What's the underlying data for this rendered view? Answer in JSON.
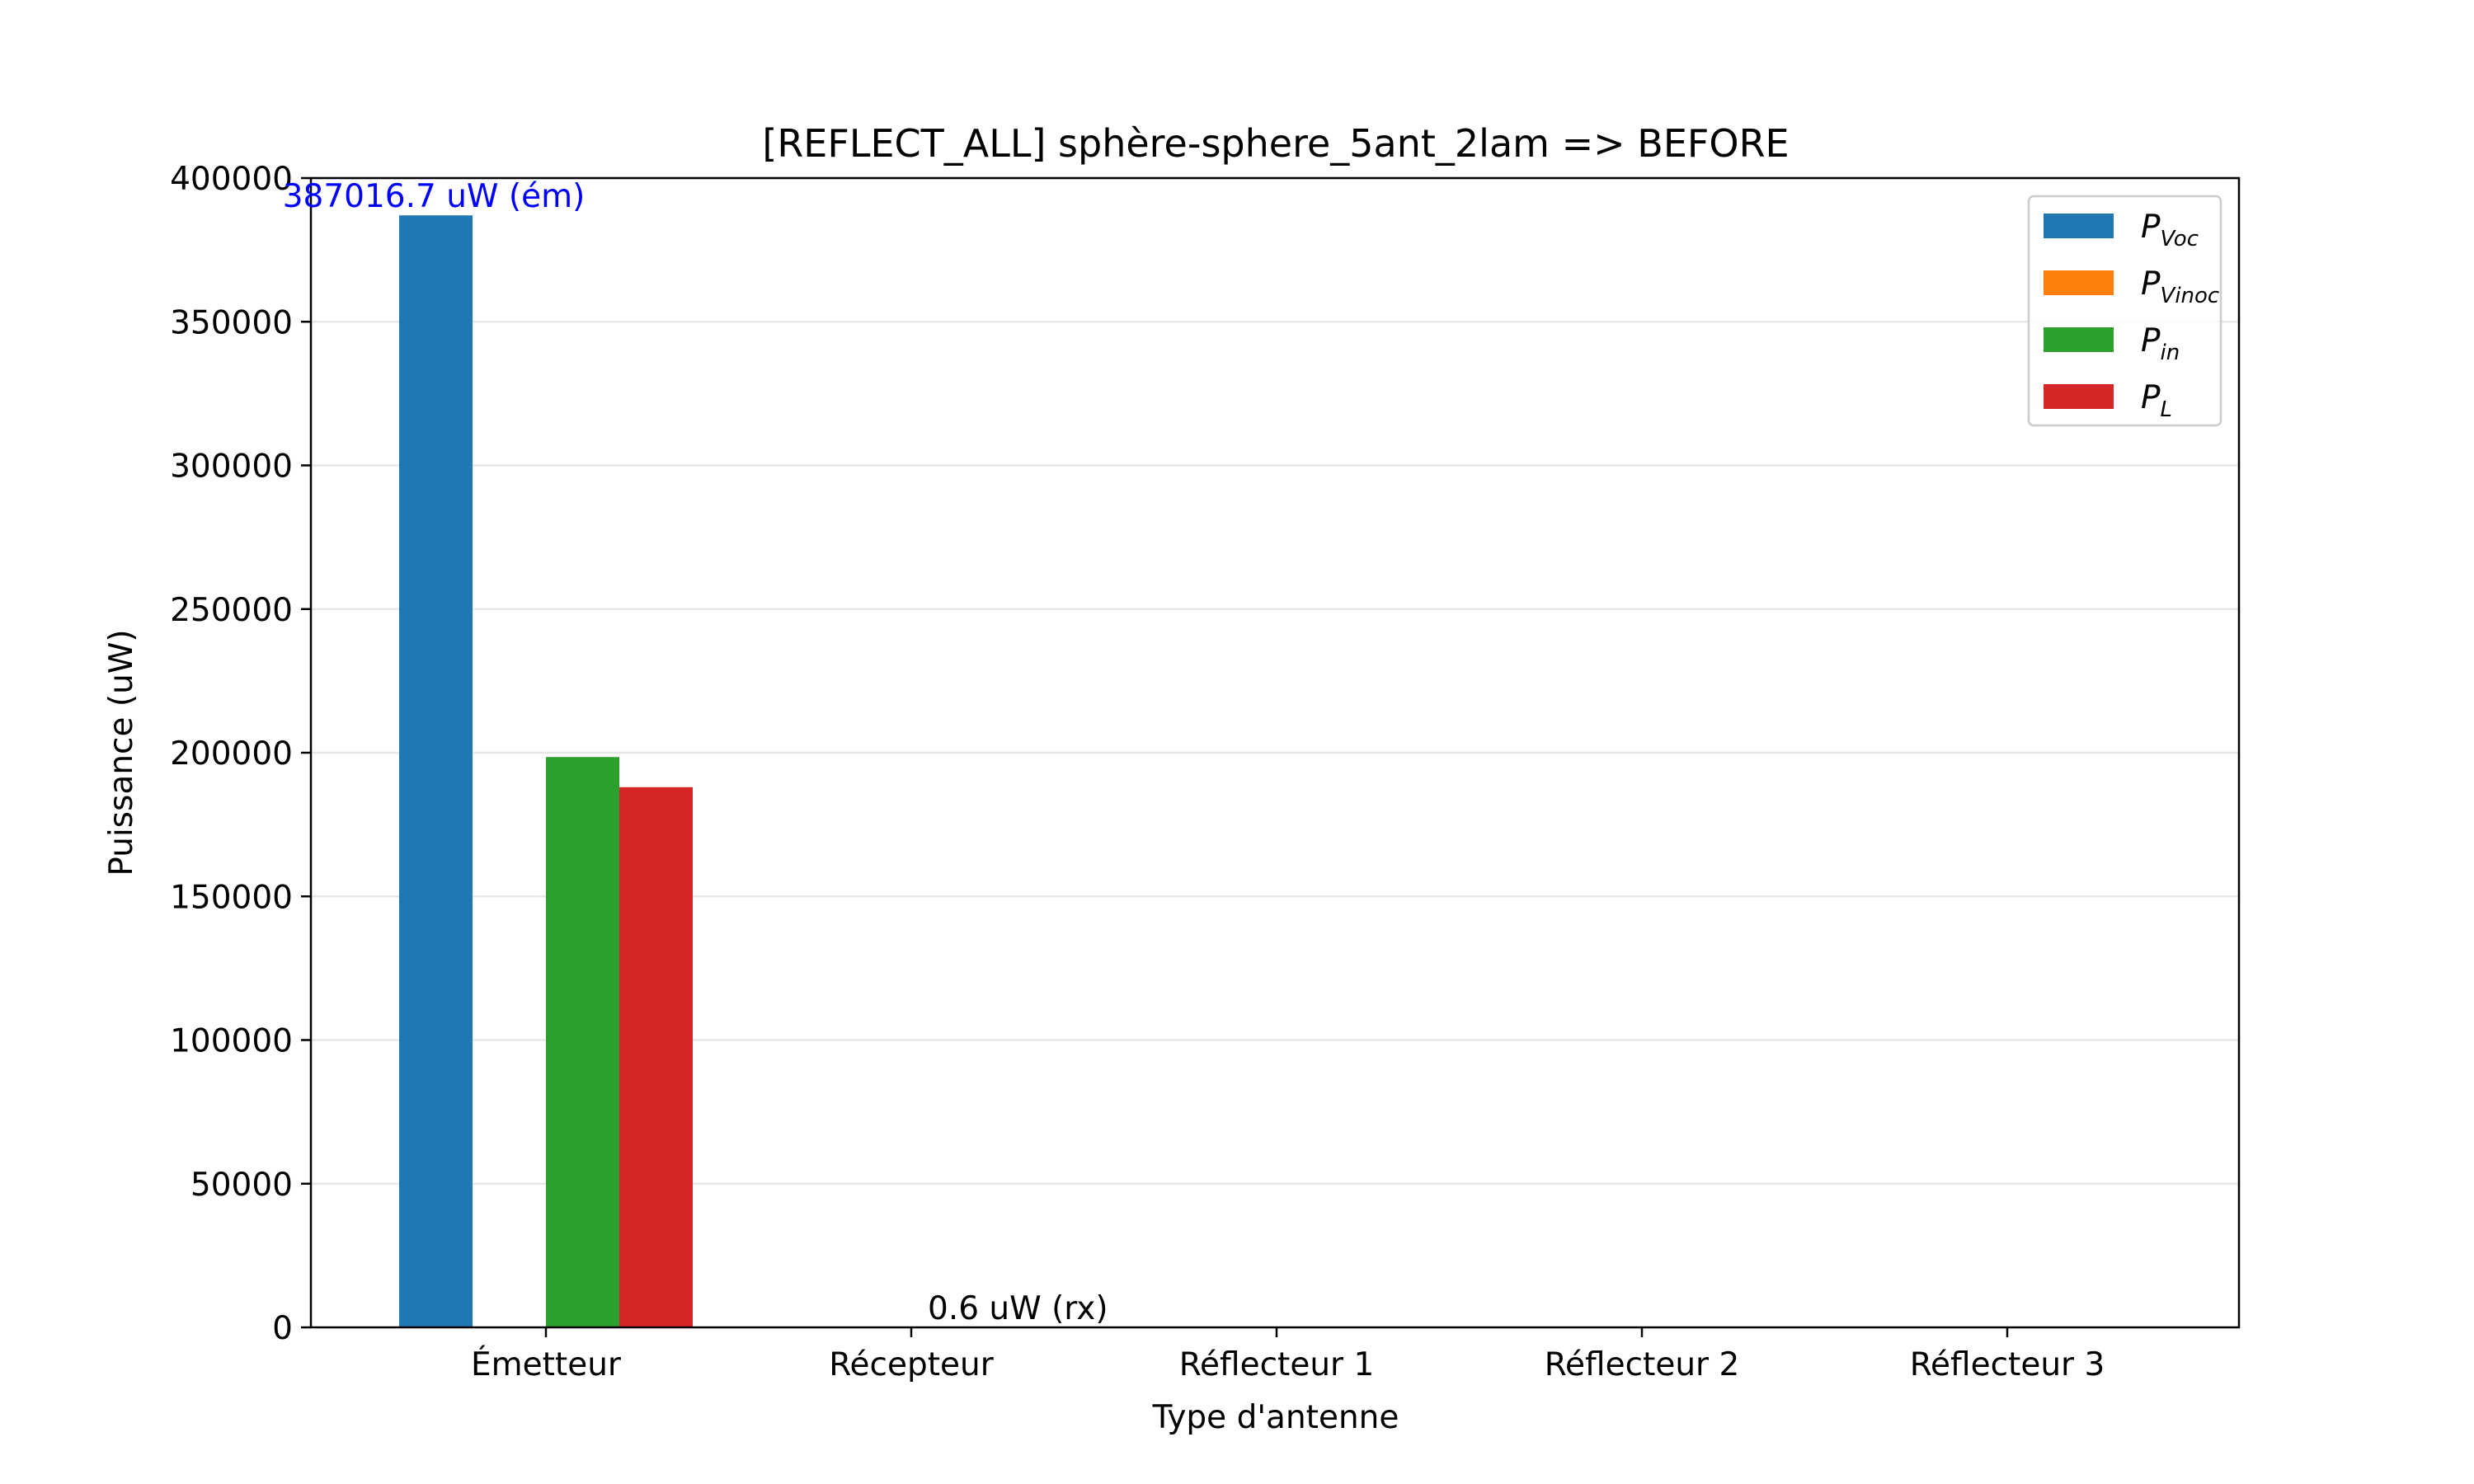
{
  "chart_data": {
    "type": "bar",
    "title": "[REFLECT_ALL] sphère-sphere_5ant_2lam => BEFORE",
    "xlabel": "Type d'antenne",
    "ylabel": "Puissance (uW)",
    "categories": [
      "Émetteur",
      "Récepteur",
      "Réflecteur 1",
      "Réflecteur 2",
      "Réflecteur 3"
    ],
    "ylim": [
      0,
      400000
    ],
    "yticks": [
      0,
      50000,
      100000,
      150000,
      200000,
      250000,
      300000,
      350000,
      400000
    ],
    "yticks_labels": [
      "0",
      "50000",
      "100000",
      "150000",
      "200000",
      "250000",
      "300000",
      "350000",
      "400000"
    ],
    "grid": "horizontal",
    "legend_position": "top-right",
    "series": [
      {
        "name": "P",
        "sub": "Voc",
        "color": "#1f77b4",
        "values": [
          387016.7,
          0.6,
          0,
          0,
          0
        ]
      },
      {
        "name": "P",
        "sub": "Vinoc",
        "color": "#ff7f0e",
        "values": [
          0,
          0,
          0,
          0,
          0
        ]
      },
      {
        "name": "P",
        "sub": "in",
        "color": "#2ca02c",
        "values": [
          198500,
          0,
          0,
          0,
          0
        ]
      },
      {
        "name": "P",
        "sub": "L",
        "color": "#d62728",
        "values": [
          188000,
          0,
          0,
          0,
          0
        ]
      }
    ],
    "annotations": [
      {
        "text": "387016.7 uW (ém)",
        "category": 0,
        "value": 387016.7,
        "color": "#0000ff"
      },
      {
        "text": "0.6 uW (rx)",
        "category": 1,
        "value": 0.6,
        "color": "#000000"
      }
    ]
  }
}
